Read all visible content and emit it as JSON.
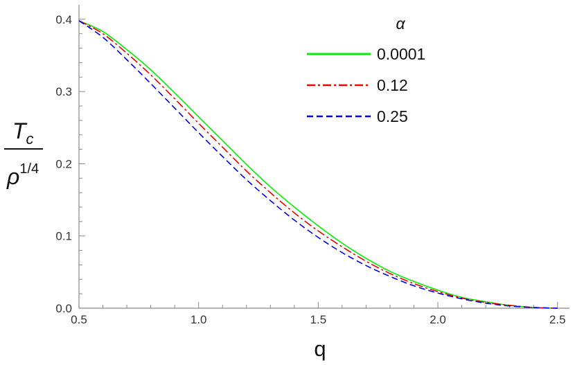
{
  "chart_data": {
    "type": "line",
    "title": "",
    "xlabel": "q",
    "ylabel": {
      "numerator": {
        "base": "T",
        "subscript": "c"
      },
      "denominator": {
        "base": "ρ",
        "superscript": "1/4"
      }
    },
    "xlim": [
      0.5,
      2.55
    ],
    "ylim": [
      0.0,
      0.42
    ],
    "x_ticks": [
      "0.5",
      "1.0",
      "1.5",
      "2.0",
      "2.5"
    ],
    "y_ticks": [
      "0.0",
      "0.1",
      "0.2",
      "0.3",
      "0.4"
    ],
    "legend_title": "α",
    "legend_position": "top-right",
    "grid": false,
    "series": [
      {
        "name": "0.0001",
        "color": "#00ee00",
        "dash": "solid",
        "x": [
          0.5,
          0.6,
          0.7,
          0.8,
          0.9,
          1.0,
          1.1,
          1.2,
          1.3,
          1.4,
          1.5,
          1.6,
          1.7,
          1.8,
          1.9,
          2.0,
          2.1,
          2.2,
          2.3,
          2.4,
          2.5
        ],
        "y": [
          0.398,
          0.383,
          0.358,
          0.33,
          0.298,
          0.265,
          0.232,
          0.199,
          0.168,
          0.14,
          0.114,
          0.09,
          0.069,
          0.051,
          0.037,
          0.025,
          0.015,
          0.009,
          0.004,
          0.001,
          0.0
        ]
      },
      {
        "name": "0.12",
        "color": "#ee0000",
        "dash": "dashdot",
        "x": [
          0.5,
          0.6,
          0.7,
          0.8,
          0.9,
          1.0,
          1.1,
          1.2,
          1.3,
          1.4,
          1.5,
          1.6,
          1.7,
          1.8,
          1.9,
          2.0,
          2.1,
          2.2,
          2.3,
          2.4,
          2.5
        ],
        "y": [
          0.398,
          0.38,
          0.353,
          0.323,
          0.29,
          0.256,
          0.223,
          0.19,
          0.16,
          0.132,
          0.107,
          0.085,
          0.065,
          0.048,
          0.034,
          0.023,
          0.014,
          0.008,
          0.004,
          0.001,
          0.0
        ]
      },
      {
        "name": "0.25",
        "color": "#0000ee",
        "dash": "dashed",
        "x": [
          0.5,
          0.6,
          0.7,
          0.8,
          0.9,
          1.0,
          1.1,
          1.2,
          1.3,
          1.4,
          1.5,
          1.6,
          1.7,
          1.8,
          1.9,
          2.0,
          2.1,
          2.2,
          2.3,
          2.4,
          2.5
        ],
        "y": [
          0.398,
          0.375,
          0.344,
          0.311,
          0.277,
          0.243,
          0.21,
          0.178,
          0.149,
          0.122,
          0.098,
          0.077,
          0.059,
          0.044,
          0.031,
          0.021,
          0.013,
          0.007,
          0.003,
          0.001,
          0.0
        ]
      }
    ]
  }
}
